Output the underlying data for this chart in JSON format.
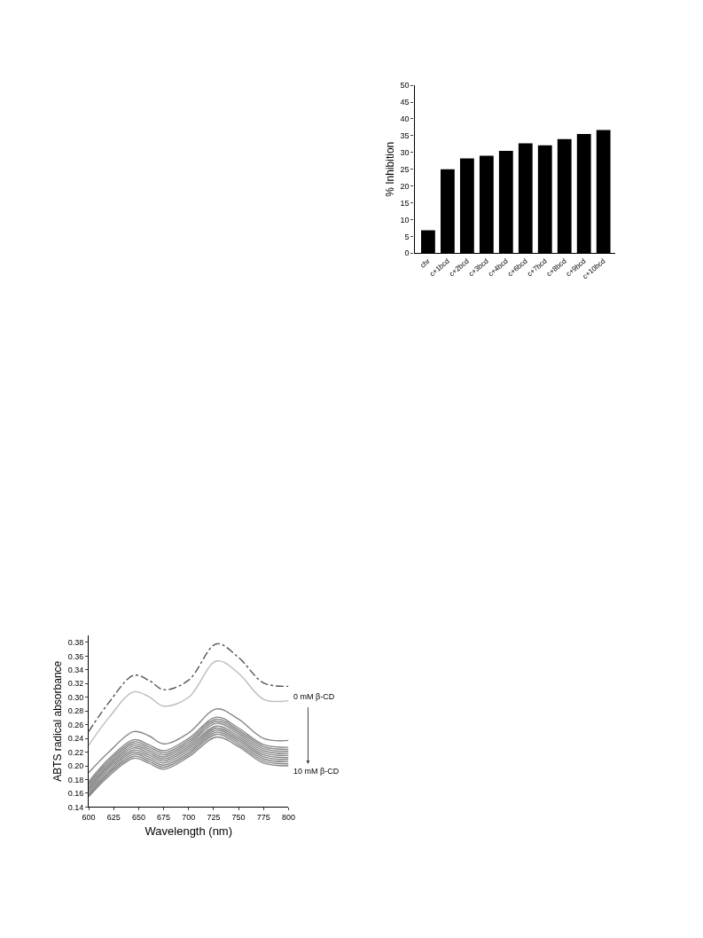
{
  "chart_data": [
    {
      "type": "bar",
      "ylabel": "% Inhibition",
      "categories": [
        "chr",
        "c+1bcd",
        "c+2bcd",
        "c+3bcd",
        "c+4bcd",
        "c+6bcd",
        "c+7bcd",
        "c+8bcd",
        "c+9bcd",
        "c+10bcd"
      ],
      "values": [
        6.8,
        25.0,
        28.2,
        29.0,
        30.5,
        32.7,
        32.1,
        34.0,
        35.5,
        36.7
      ],
      "color": "#000000",
      "ylim": [
        0,
        50
      ],
      "yticks": [
        0,
        5,
        10,
        15,
        20,
        25,
        30,
        35,
        40,
        45,
        50
      ]
    },
    {
      "type": "line",
      "xlabel": "Wavelength (nm)",
      "ylabel": "ABTS radical absorbance",
      "x": [
        600,
        620,
        645,
        660,
        675,
        700,
        728,
        750,
        775,
        800
      ],
      "series": [
        {
          "color": "#555555",
          "line_style": "dashed",
          "values": [
            0.25,
            0.292,
            0.332,
            0.325,
            0.311,
            0.325,
            0.378,
            0.358,
            0.321,
            0.316
          ]
        },
        {
          "color": "#bbbbbb",
          "values": [
            0.23,
            0.27,
            0.308,
            0.301,
            0.287,
            0.3,
            0.353,
            0.335,
            0.297,
            0.295
          ]
        },
        {
          "color": "#888888",
          "values": [
            0.19,
            0.22,
            0.25,
            0.244,
            0.232,
            0.248,
            0.283,
            0.268,
            0.24,
            0.237
          ]
        },
        {
          "color": "#888888",
          "values": [
            0.177,
            0.21,
            0.238,
            0.231,
            0.222,
            0.24,
            0.271,
            0.255,
            0.231,
            0.227
          ]
        },
        {
          "color": "#888888",
          "values": [
            0.174,
            0.207,
            0.235,
            0.228,
            0.219,
            0.237,
            0.268,
            0.252,
            0.228,
            0.224
          ]
        },
        {
          "color": "#888888",
          "values": [
            0.172,
            0.204,
            0.232,
            0.225,
            0.216,
            0.234,
            0.265,
            0.249,
            0.225,
            0.221
          ]
        },
        {
          "color": "#888888",
          "values": [
            0.169,
            0.201,
            0.229,
            0.222,
            0.213,
            0.231,
            0.262,
            0.246,
            0.222,
            0.218
          ]
        },
        {
          "color": "#888888",
          "values": [
            0.167,
            0.199,
            0.226,
            0.219,
            0.21,
            0.228,
            0.258,
            0.243,
            0.219,
            0.215
          ]
        },
        {
          "color": "#888888",
          "values": [
            0.164,
            0.196,
            0.223,
            0.216,
            0.207,
            0.225,
            0.255,
            0.24,
            0.216,
            0.212
          ]
        },
        {
          "color": "#888888",
          "values": [
            0.162,
            0.193,
            0.22,
            0.213,
            0.204,
            0.222,
            0.252,
            0.237,
            0.213,
            0.209
          ]
        },
        {
          "color": "#888888",
          "values": [
            0.159,
            0.19,
            0.217,
            0.21,
            0.201,
            0.219,
            0.249,
            0.234,
            0.21,
            0.206
          ]
        },
        {
          "color": "#888888",
          "values": [
            0.157,
            0.188,
            0.214,
            0.207,
            0.198,
            0.216,
            0.246,
            0.231,
            0.207,
            0.203
          ]
        },
        {
          "color": "#888888",
          "values": [
            0.155,
            0.185,
            0.211,
            0.204,
            0.195,
            0.213,
            0.242,
            0.228,
            0.204,
            0.2
          ]
        }
      ],
      "xlim": [
        600,
        800
      ],
      "xticks": [
        600,
        625,
        650,
        675,
        700,
        725,
        750,
        775,
        800
      ],
      "ylim": [
        0.14,
        0.39
      ],
      "yticks": [
        0.14,
        0.16,
        0.18,
        {
          "value": 0.2,
          "label": "0.20"
        },
        0.22,
        0.24,
        0.26,
        0.28,
        {
          "value": 0.3,
          "label": "0.30"
        },
        0.32,
        0.34,
        0.36,
        0.38
      ],
      "annotations": [
        "0 mM β-CD",
        "10 mM β-CD"
      ],
      "marker": "none"
    }
  ]
}
